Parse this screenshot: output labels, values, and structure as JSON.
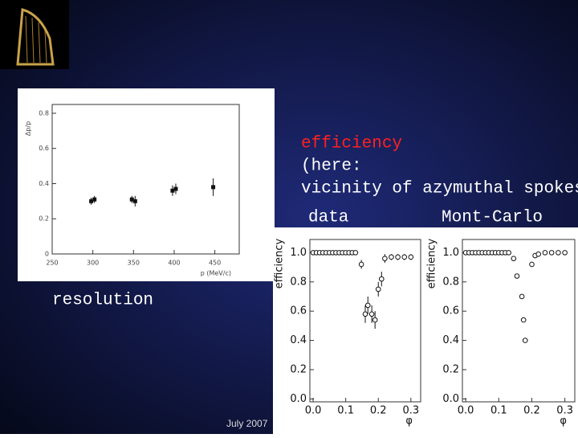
{
  "slide": {
    "heading_lines": [
      "efficiency",
      "(here:",
      "vicinity of azymuthal spokes)"
    ],
    "left_caption": "resolution",
    "data_label": "data",
    "mc_label": "Mont-Carlo",
    "footer": "July 2007"
  },
  "chart_data": [
    {
      "type": "scatter",
      "x_label": "p (MeV/c)",
      "y_label": "Δp/p",
      "x": [
        298,
        302,
        348,
        352,
        398,
        402,
        448
      ],
      "values": [
        0.3,
        0.31,
        0.31,
        0.3,
        0.36,
        0.37,
        0.38
      ],
      "errors": [
        0.02,
        0.02,
        0.02,
        0.03,
        0.03,
        0.03,
        0.05
      ],
      "xlim": [
        250,
        480
      ],
      "ylim": [
        0,
        0.85
      ],
      "xticks": [
        250,
        300,
        350,
        400,
        450
      ],
      "yticks": [
        0,
        0.2,
        0.4,
        0.6,
        0.8
      ],
      "color": "#111111"
    },
    {
      "type": "scatter",
      "x_label": "φ",
      "y_label": "efficiency",
      "x": [
        0.0,
        0.01,
        0.02,
        0.03,
        0.04,
        0.05,
        0.06,
        0.07,
        0.08,
        0.09,
        0.1,
        0.11,
        0.12,
        0.13,
        0.148,
        0.16,
        0.168,
        0.18,
        0.19,
        0.2,
        0.21,
        0.22,
        0.24,
        0.26,
        0.28,
        0.3
      ],
      "values": [
        1.0,
        1.0,
        1.0,
        1.0,
        1.0,
        1.0,
        1.0,
        1.0,
        1.0,
        1.0,
        1.0,
        1.0,
        1.0,
        1.0,
        0.92,
        0.58,
        0.64,
        0.58,
        0.54,
        0.75,
        0.82,
        0.96,
        0.97,
        0.97,
        0.97,
        0.97
      ],
      "errors": [
        0.005,
        0.005,
        0.005,
        0.005,
        0.005,
        0.005,
        0.005,
        0.005,
        0.005,
        0.005,
        0.005,
        0.005,
        0.005,
        0.005,
        0.03,
        0.06,
        0.06,
        0.06,
        0.06,
        0.05,
        0.05,
        0.03,
        0.02,
        0.02,
        0.02,
        0.02
      ],
      "xlim": [
        -0.01,
        0.33
      ],
      "ylim": [
        -0.02,
        1.09
      ],
      "xticks": [
        {
          "value": 0,
          "label": "0.0"
        },
        0.1,
        0.2,
        0.3
      ],
      "yticks": [
        {
          "value": 0,
          "label": "0.0"
        },
        0.2,
        0.4,
        0.6,
        0.8,
        {
          "value": 1,
          "label": "1.0"
        }
      ],
      "color": "#111111"
    },
    {
      "type": "scatter",
      "x_label": "φ",
      "y_label": "efficiency",
      "x": [
        0.0,
        0.01,
        0.02,
        0.03,
        0.04,
        0.05,
        0.06,
        0.07,
        0.08,
        0.09,
        0.1,
        0.11,
        0.12,
        0.13,
        0.145,
        0.155,
        0.17,
        0.175,
        0.18,
        0.2,
        0.21,
        0.22,
        0.24,
        0.26,
        0.28,
        0.3
      ],
      "values": [
        1.0,
        1.0,
        1.0,
        1.0,
        1.0,
        1.0,
        1.0,
        1.0,
        1.0,
        1.0,
        1.0,
        1.0,
        1.0,
        1.0,
        0.96,
        0.84,
        0.7,
        0.54,
        0.4,
        0.92,
        0.98,
        0.99,
        1.0,
        1.0,
        1.0,
        1.0
      ],
      "xlim": [
        -0.01,
        0.33
      ],
      "ylim": [
        -0.02,
        1.09
      ],
      "xticks": [
        {
          "value": 0,
          "label": "0.0"
        },
        0.1,
        0.2,
        0.3
      ],
      "yticks": [
        {
          "value": 0,
          "label": "0.0"
        },
        0.2,
        0.4,
        0.6,
        0.8,
        {
          "value": 1,
          "label": "1.0"
        }
      ],
      "color": "#111111"
    }
  ]
}
